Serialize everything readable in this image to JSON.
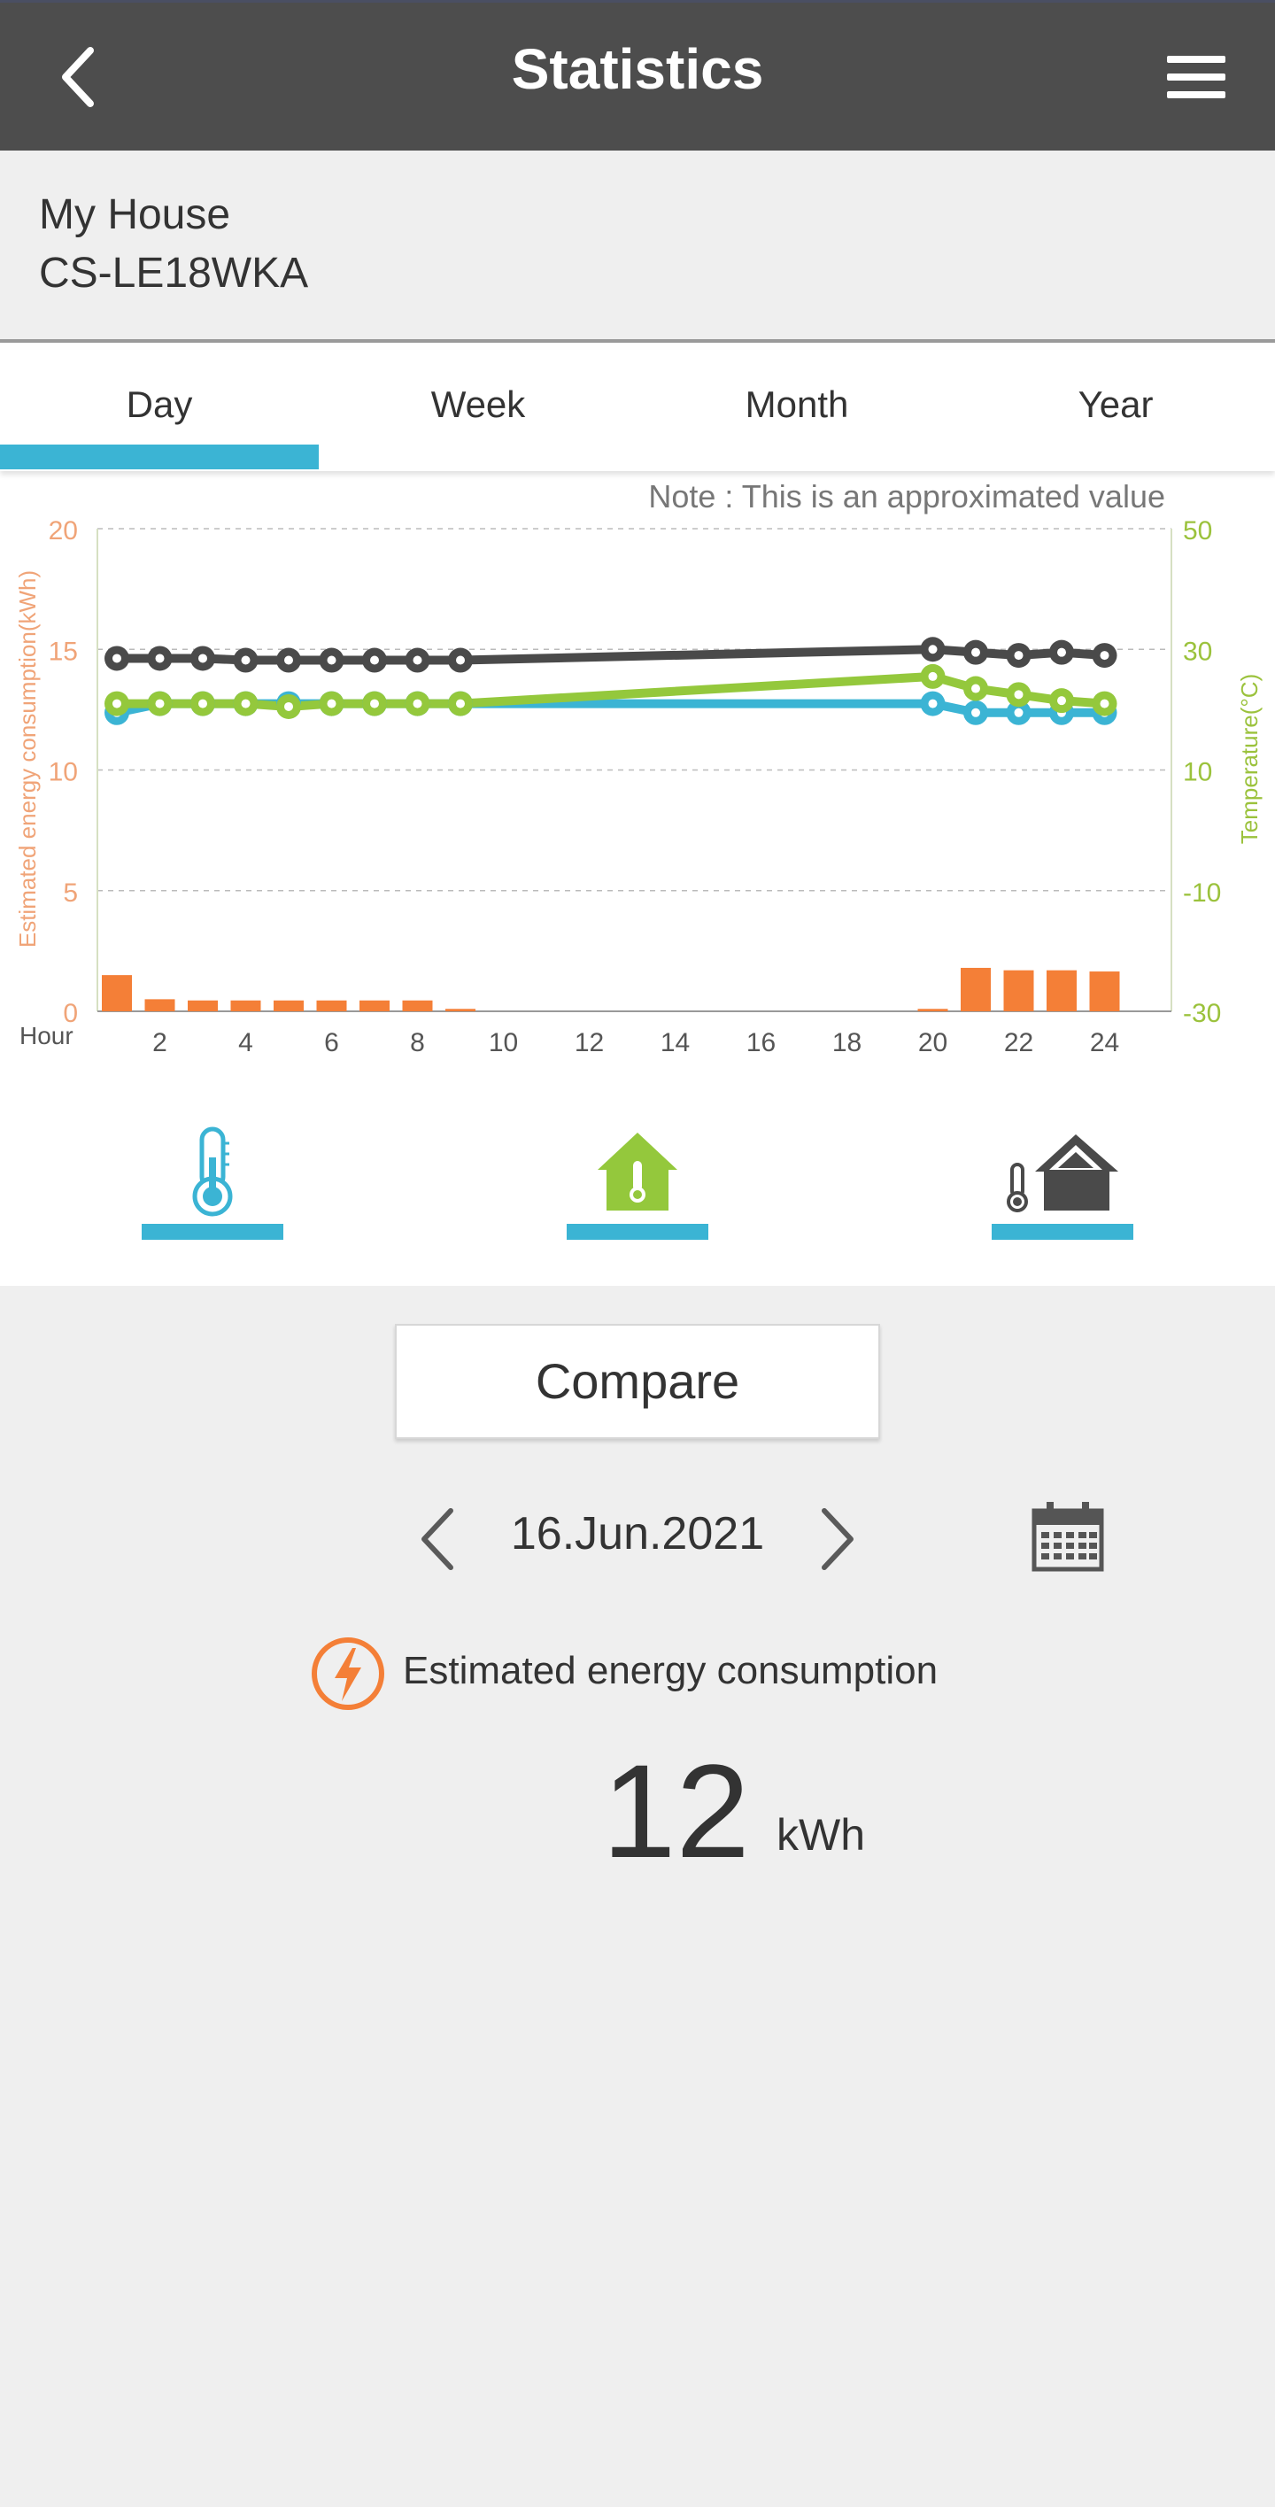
{
  "header": {
    "title": "Statistics",
    "back_icon": "chevron-left-icon",
    "menu_icon": "hamburger-menu-icon"
  },
  "device": {
    "house_name": "My House",
    "model": "CS-LE18WKA"
  },
  "tabs": [
    {
      "label": "Day",
      "active": true
    },
    {
      "label": "Week",
      "active": false
    },
    {
      "label": "Month",
      "active": false
    },
    {
      "label": "Year",
      "active": false
    }
  ],
  "chart_note": "Note : This is an approximated value",
  "chart_data": {
    "type": "bar+line",
    "xlabel": "Hour",
    "ylabel_left": "Estimated energy consumption(kWh)",
    "ylabel_right": "Temperature(°C)",
    "x_ticks": [
      2,
      4,
      6,
      8,
      10,
      12,
      14,
      16,
      18,
      20,
      22,
      24
    ],
    "y_left_ticks": [
      0,
      5,
      10,
      15,
      20
    ],
    "y_right_ticks": [
      -30,
      -10,
      10,
      30,
      50
    ],
    "ylim_left": [
      0,
      20
    ],
    "ylim_right": [
      -30,
      50
    ],
    "grid": true,
    "colors": {
      "bars": "#f47f37",
      "left_axis": "#f0a478",
      "right_axis": "#9bc23c"
    },
    "bars": {
      "hours": [
        1,
        2,
        3,
        4,
        5,
        6,
        7,
        8,
        9,
        20,
        21,
        22,
        23,
        24
      ],
      "values": [
        1.5,
        0.5,
        0.45,
        0.45,
        0.45,
        0.45,
        0.45,
        0.45,
        0.1,
        0.1,
        1.8,
        1.7,
        1.7,
        1.65
      ]
    },
    "series": [
      {
        "color": "#4a4a4a",
        "axis": "right",
        "hours": [
          1,
          2,
          3,
          4,
          5,
          6,
          7,
          8,
          9,
          20,
          21,
          22,
          23,
          24
        ],
        "values": [
          28.5,
          28.5,
          28.5,
          28.2,
          28.2,
          28.2,
          28.2,
          28.2,
          28.2,
          30,
          29.5,
          29,
          29.5,
          29
        ]
      },
      {
        "color": "#3bb4d4",
        "axis": "right",
        "hours": [
          1,
          2,
          3,
          4,
          5,
          6,
          7,
          8,
          9,
          20,
          21,
          22,
          23,
          24
        ],
        "values": [
          19.5,
          21,
          21,
          21,
          21,
          21,
          21,
          21,
          21,
          21,
          19.5,
          19.5,
          19.5,
          19.5
        ]
      },
      {
        "color": "#94c83c",
        "axis": "right",
        "hours": [
          1,
          2,
          3,
          4,
          5,
          6,
          7,
          8,
          9,
          20,
          21,
          22,
          23,
          24
        ],
        "values": [
          21,
          21,
          21,
          21,
          20.5,
          21,
          21,
          21,
          21,
          25.5,
          23.5,
          22.5,
          21.5,
          21
        ]
      }
    ]
  },
  "series_toggles": [
    {
      "icon": "thermometer-icon",
      "color": "#3bb4d4"
    },
    {
      "icon": "house-thermometer-icon",
      "color": "#94c83c"
    },
    {
      "icon": "outdoor-thermometer-house-icon",
      "color": "#4a4a4a"
    }
  ],
  "compare_label": "Compare",
  "date": {
    "label": "16.Jun.2021",
    "prev_icon": "chevron-left-icon",
    "next_icon": "chevron-right-icon",
    "calendar_icon": "calendar-icon"
  },
  "energy": {
    "label": "Estimated energy consumption",
    "icon": "lightning-circle-icon",
    "value": "12",
    "unit": "kWh"
  }
}
